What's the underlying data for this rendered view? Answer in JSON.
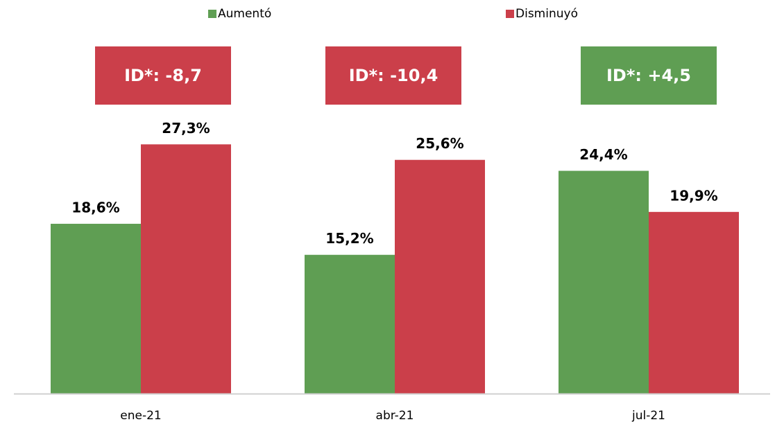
{
  "chart_data": {
    "type": "bar",
    "categories": [
      "ene-21",
      "abr-21",
      "jul-21"
    ],
    "series": [
      {
        "name": "Aumentó",
        "color": "#5f9e53",
        "values": [
          18.6,
          15.2,
          24.4
        ],
        "value_labels": [
          "18,6%",
          "15,2%",
          "24,4%"
        ]
      },
      {
        "name": "Disminuyó",
        "color": "#cb3f4a",
        "values": [
          27.3,
          25.6,
          19.9
        ],
        "value_labels": [
          "27,3%",
          "25,6%",
          "19,9%"
        ]
      }
    ],
    "annotations": [
      {
        "text": "ID*: -8,7",
        "color": "#cb3f4a"
      },
      {
        "text": "ID*: -10,4",
        "color": "#cb3f4a"
      },
      {
        "text": "ID*: +4,5",
        "color": "#5f9e53"
      }
    ],
    "ylim": [
      0,
      40
    ],
    "legend": "top"
  }
}
